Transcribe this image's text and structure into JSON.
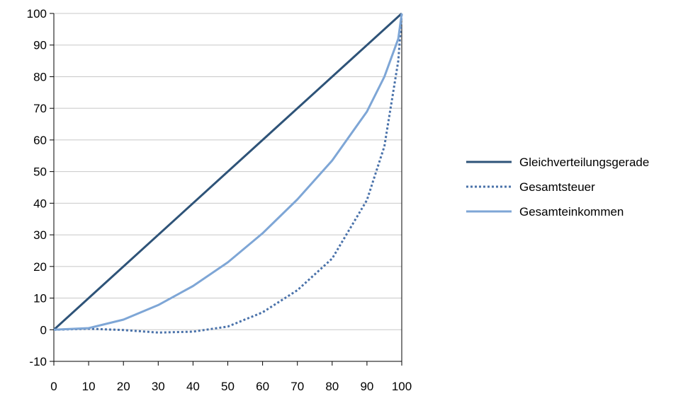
{
  "chart_data": {
    "type": "line",
    "title": "",
    "xlabel": "",
    "ylabel": "",
    "xlim": [
      0,
      100
    ],
    "ylim": [
      -10,
      100
    ],
    "x_ticks": [
      "0",
      "10",
      "20",
      "30",
      "40",
      "50",
      "60",
      "70",
      "80",
      "90",
      "100"
    ],
    "y_ticks": [
      "100",
      "90",
      "80",
      "70",
      "60",
      "50",
      "40",
      "30",
      "20",
      "10",
      "0",
      "-10"
    ],
    "grid": "horizontal",
    "legend_position": "right",
    "series": [
      {
        "name": "Gleichverteilungsgerade",
        "color": "#2e5378",
        "dash": "solid",
        "x": [
          0,
          100
        ],
        "y": [
          0,
          100
        ]
      },
      {
        "name": "Gesamtsteuer",
        "color": "#4a72aa",
        "dash": "dotted",
        "x": [
          0,
          10,
          20,
          30,
          40,
          50,
          60,
          70,
          80,
          90,
          95,
          99,
          100
        ],
        "y": [
          0,
          0.3,
          -0.1,
          -0.9,
          -0.6,
          1.0,
          5.5,
          12.5,
          22.5,
          41,
          58,
          85,
          100
        ]
      },
      {
        "name": "Gesamteinkommen",
        "color": "#7ea6d6",
        "dash": "solid",
        "x": [
          0,
          10,
          20,
          30,
          40,
          50,
          60,
          70,
          80,
          90,
          95,
          99,
          100
        ],
        "y": [
          0,
          0.5,
          3.2,
          7.8,
          13.8,
          21.3,
          30.5,
          41.2,
          53.5,
          69.0,
          80.0,
          92.0,
          100
        ]
      }
    ]
  }
}
